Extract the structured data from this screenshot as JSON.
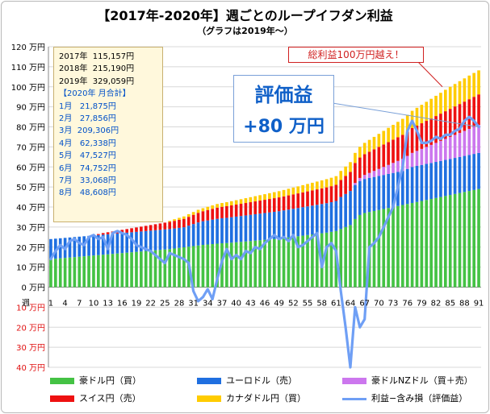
{
  "title": "【2017年-2020年】週ごとのループイフダン利益",
  "subtitle": "（グラフは2019年～）",
  "callout": "総利益100万円越え！",
  "eval_box": {
    "line1": "評価益",
    "line2": "+80 万円"
  },
  "summary": {
    "years": [
      "2017年  115,157円",
      "2018年  215,190円",
      "2019年  329,059円"
    ],
    "header": "【2020年  月合計】",
    "months": [
      "1月   21,875円",
      "2月   27,856円",
      "3月  209,306円",
      "4月   62,338円",
      "5月   47,527円",
      "6月   74,752円",
      "7月   33,068円",
      "8月   48,608円"
    ]
  },
  "colors": {
    "green": "#44c244",
    "blue": "#1f6fe0",
    "purple": "#cc77ee",
    "red": "#ee1111",
    "yellow": "#ffcc00",
    "line": "#6f9ff5"
  },
  "chart_data": {
    "type": "bar",
    "stacked": true,
    "x_axis_label": "週",
    "x_tick_labels": [
      "1",
      "4",
      "7",
      "10",
      "13",
      "16",
      "19",
      "22",
      "25",
      "28",
      "31",
      "34",
      "37",
      "40",
      "43",
      "46",
      "49",
      "52",
      "55",
      "58",
      "61",
      "64",
      "67",
      "70",
      "73",
      "76",
      "79",
      "82",
      "85",
      "88",
      "91"
    ],
    "y_tick_labels": [
      "120 万円",
      "110 万円",
      "100 万円",
      "90 万円",
      "80 万円",
      "70 万円",
      "60 万円",
      "50 万円",
      "40 万円",
      "30 万円",
      "20 万円",
      "10 万円",
      "0 万円",
      "10 万円",
      "20 万円",
      "30 万円",
      "40 万円"
    ],
    "y_unit": "万円",
    "ylim": [
      -40,
      120
    ],
    "weeks": 91,
    "series": [
      {
        "name": "豪ドル円（買）",
        "key": "green",
        "values": [
          14.0,
          14.2,
          14.4,
          14.6,
          14.8,
          15.0,
          15.2,
          15.4,
          15.6,
          15.8,
          16.0,
          16.2,
          16.4,
          16.6,
          16.8,
          17.0,
          17.2,
          17.4,
          17.6,
          17.8,
          18.0,
          18.2,
          18.4,
          18.6,
          18.8,
          19.0,
          19.3,
          19.6,
          19.9,
          20.2,
          20.5,
          20.8,
          21.1,
          21.3,
          21.5,
          21.7,
          21.9,
          22.0,
          22.2,
          22.4,
          22.6,
          22.8,
          23.0,
          23.2,
          23.4,
          23.6,
          23.8,
          24.0,
          24.2,
          24.5,
          24.8,
          25.1,
          25.4,
          25.7,
          26.0,
          26.3,
          26.6,
          26.9,
          27.2,
          27.6,
          28.0,
          29.0,
          30.0,
          31.0,
          34.0,
          36.0,
          37.0,
          37.5,
          38.0,
          38.5,
          39.0,
          39.5,
          40.0,
          40.5,
          41.0,
          41.5,
          42.0,
          42.5,
          43.0,
          43.5,
          44.0,
          44.5,
          45.0,
          45.5,
          46.0,
          46.5,
          47.0,
          47.5,
          48.0,
          48.5,
          49.0
        ]
      },
      {
        "name": "ユーロドル（売）",
        "key": "blue",
        "values": [
          10.0,
          10.0,
          10.0,
          10.0,
          10.0,
          10.0,
          10.0,
          10.0,
          10.0,
          10.0,
          10.0,
          10.0,
          10.0,
          10.0,
          10.0,
          10.0,
          10.0,
          10.0,
          10.0,
          10.0,
          10.0,
          10.0,
          10.0,
          10.0,
          10.0,
          10.0,
          10.0,
          10.0,
          10.0,
          10.5,
          11.0,
          11.5,
          11.8,
          12.0,
          12.2,
          12.4,
          12.5,
          12.6,
          12.7,
          12.8,
          12.9,
          13.0,
          13.1,
          13.2,
          13.3,
          13.4,
          13.5,
          13.6,
          13.7,
          13.8,
          13.9,
          14.0,
          14.1,
          14.2,
          14.3,
          14.4,
          14.5,
          14.6,
          14.7,
          14.8,
          15.0,
          16.0,
          16.5,
          17.0,
          17.0,
          17.0,
          17.0,
          17.0,
          17.0,
          17.0,
          17.0,
          17.0,
          17.0,
          17.0,
          17.0,
          17.5,
          18.0,
          18.0,
          18.0,
          18.0,
          18.0,
          18.0,
          18.0,
          18.0,
          18.0,
          18.0,
          18.0,
          18.0,
          18.0,
          18.0,
          18.0
        ]
      },
      {
        "name": "豪ドルNZドル（買＋売）",
        "key": "purple",
        "values": [
          0,
          0,
          0,
          0,
          0,
          0,
          0,
          0,
          0,
          0,
          0,
          0,
          0,
          0,
          0,
          0,
          0,
          0,
          0,
          0,
          0,
          0,
          0,
          0,
          0,
          0,
          0,
          0,
          0,
          0,
          0,
          0,
          0,
          0,
          0,
          0,
          0,
          0,
          0,
          0,
          0,
          0,
          0,
          0,
          0,
          0,
          0,
          0,
          0,
          0,
          0,
          0,
          0,
          0,
          0,
          0,
          0,
          0,
          0,
          0,
          0,
          0,
          0,
          0,
          1.0,
          1.5,
          2.0,
          2.5,
          3.0,
          3.5,
          4.0,
          4.5,
          5.0,
          5.5,
          6.0,
          6.5,
          7.0,
          7.5,
          8.0,
          8.5,
          9.0,
          9.5,
          10.0,
          10.5,
          11.0,
          11.5,
          12.0,
          12.5,
          13.0,
          13.5,
          14.0
        ]
      },
      {
        "name": "スイス円（売）",
        "key": "red",
        "values": [
          0,
          0,
          0,
          0,
          0,
          0,
          0,
          0,
          0,
          0,
          0.5,
          0.8,
          1.0,
          1.2,
          1.4,
          1.6,
          1.8,
          2.0,
          2.2,
          2.4,
          2.6,
          2.8,
          3.0,
          3.2,
          3.4,
          3.6,
          3.8,
          4.0,
          4.2,
          4.4,
          4.6,
          4.8,
          5.0,
          5.2,
          5.4,
          5.6,
          5.7,
          5.8,
          5.9,
          6.0,
          6.1,
          6.2,
          6.3,
          6.4,
          6.5,
          6.6,
          6.7,
          6.8,
          6.9,
          7.0,
          7.1,
          7.2,
          7.3,
          7.4,
          7.5,
          7.6,
          7.7,
          7.8,
          7.9,
          8.0,
          8.1,
          8.5,
          9.0,
          9.5,
          10.0,
          10.2,
          10.4,
          10.6,
          10.8,
          11.0,
          11.2,
          11.4,
          11.6,
          11.8,
          12.0,
          12.2,
          12.4,
          12.6,
          12.8,
          13.0,
          13.2,
          13.4,
          13.6,
          13.8,
          14.0,
          14.2,
          14.4,
          14.6,
          14.8,
          15.0,
          15.2
        ]
      },
      {
        "name": "カナダドル円（買）",
        "key": "yellow",
        "values": [
          0,
          0,
          0,
          0,
          0,
          0,
          0,
          0,
          0,
          0,
          0,
          0,
          0,
          0,
          0,
          0,
          0,
          0,
          0,
          0,
          0,
          0,
          0,
          0,
          0,
          0.5,
          0.8,
          1.0,
          1.2,
          1.3,
          1.4,
          1.5,
          1.5,
          1.6,
          1.7,
          1.8,
          1.9,
          2.0,
          2.1,
          2.2,
          2.3,
          2.4,
          2.5,
          2.6,
          2.7,
          2.8,
          2.9,
          3.0,
          3.1,
          3.2,
          3.3,
          3.4,
          3.5,
          3.6,
          3.7,
          3.8,
          3.9,
          4.0,
          4.1,
          4.2,
          4.3,
          4.5,
          4.7,
          4.9,
          5.0,
          5.3,
          5.6,
          5.9,
          6.2,
          6.5,
          6.8,
          7.1,
          7.4,
          7.7,
          8.0,
          8.3,
          8.6,
          8.9,
          9.2,
          9.5,
          9.8,
          10.1,
          10.4,
          10.7,
          11.0,
          11.2,
          11.4,
          11.6,
          11.8,
          11.9,
          12.0
        ]
      }
    ],
    "line_series": {
      "name": "利益−含み損（評価益）",
      "key": "line",
      "values": [
        14,
        18,
        21,
        19,
        23,
        24,
        22,
        21,
        25,
        26,
        24,
        25,
        19,
        27,
        28,
        27,
        26,
        24,
        21,
        20,
        19,
        18,
        16,
        14,
        12,
        17,
        16,
        15,
        14,
        12,
        -2,
        -7,
        -5,
        -1,
        -6,
        4,
        13,
        19,
        14,
        16,
        14,
        18,
        17,
        20,
        19,
        22,
        24,
        26,
        24,
        25,
        23,
        26,
        20,
        21,
        23,
        25,
        27,
        10,
        20,
        22,
        18,
        -2,
        -20,
        -40,
        -10,
        -20,
        -16,
        20,
        22,
        25,
        30,
        35,
        40,
        50,
        60,
        78,
        83,
        78,
        72,
        72,
        73,
        75,
        74,
        76,
        76,
        78,
        79,
        83,
        85,
        83,
        80
      ]
    }
  },
  "legend": [
    {
      "label": "豪ドル円（買）",
      "key": "green",
      "kind": "bar"
    },
    {
      "label": "ユーロドル（売）",
      "key": "blue",
      "kind": "bar"
    },
    {
      "label": "豪ドルNZドル（買＋売）",
      "key": "purple",
      "kind": "bar"
    },
    {
      "label": "スイス円（売）",
      "key": "red",
      "kind": "bar"
    },
    {
      "label": "カナダドル円（買）",
      "key": "yellow",
      "kind": "bar"
    },
    {
      "label": "利益−含み損（評価益）",
      "key": "line",
      "kind": "line"
    }
  ]
}
